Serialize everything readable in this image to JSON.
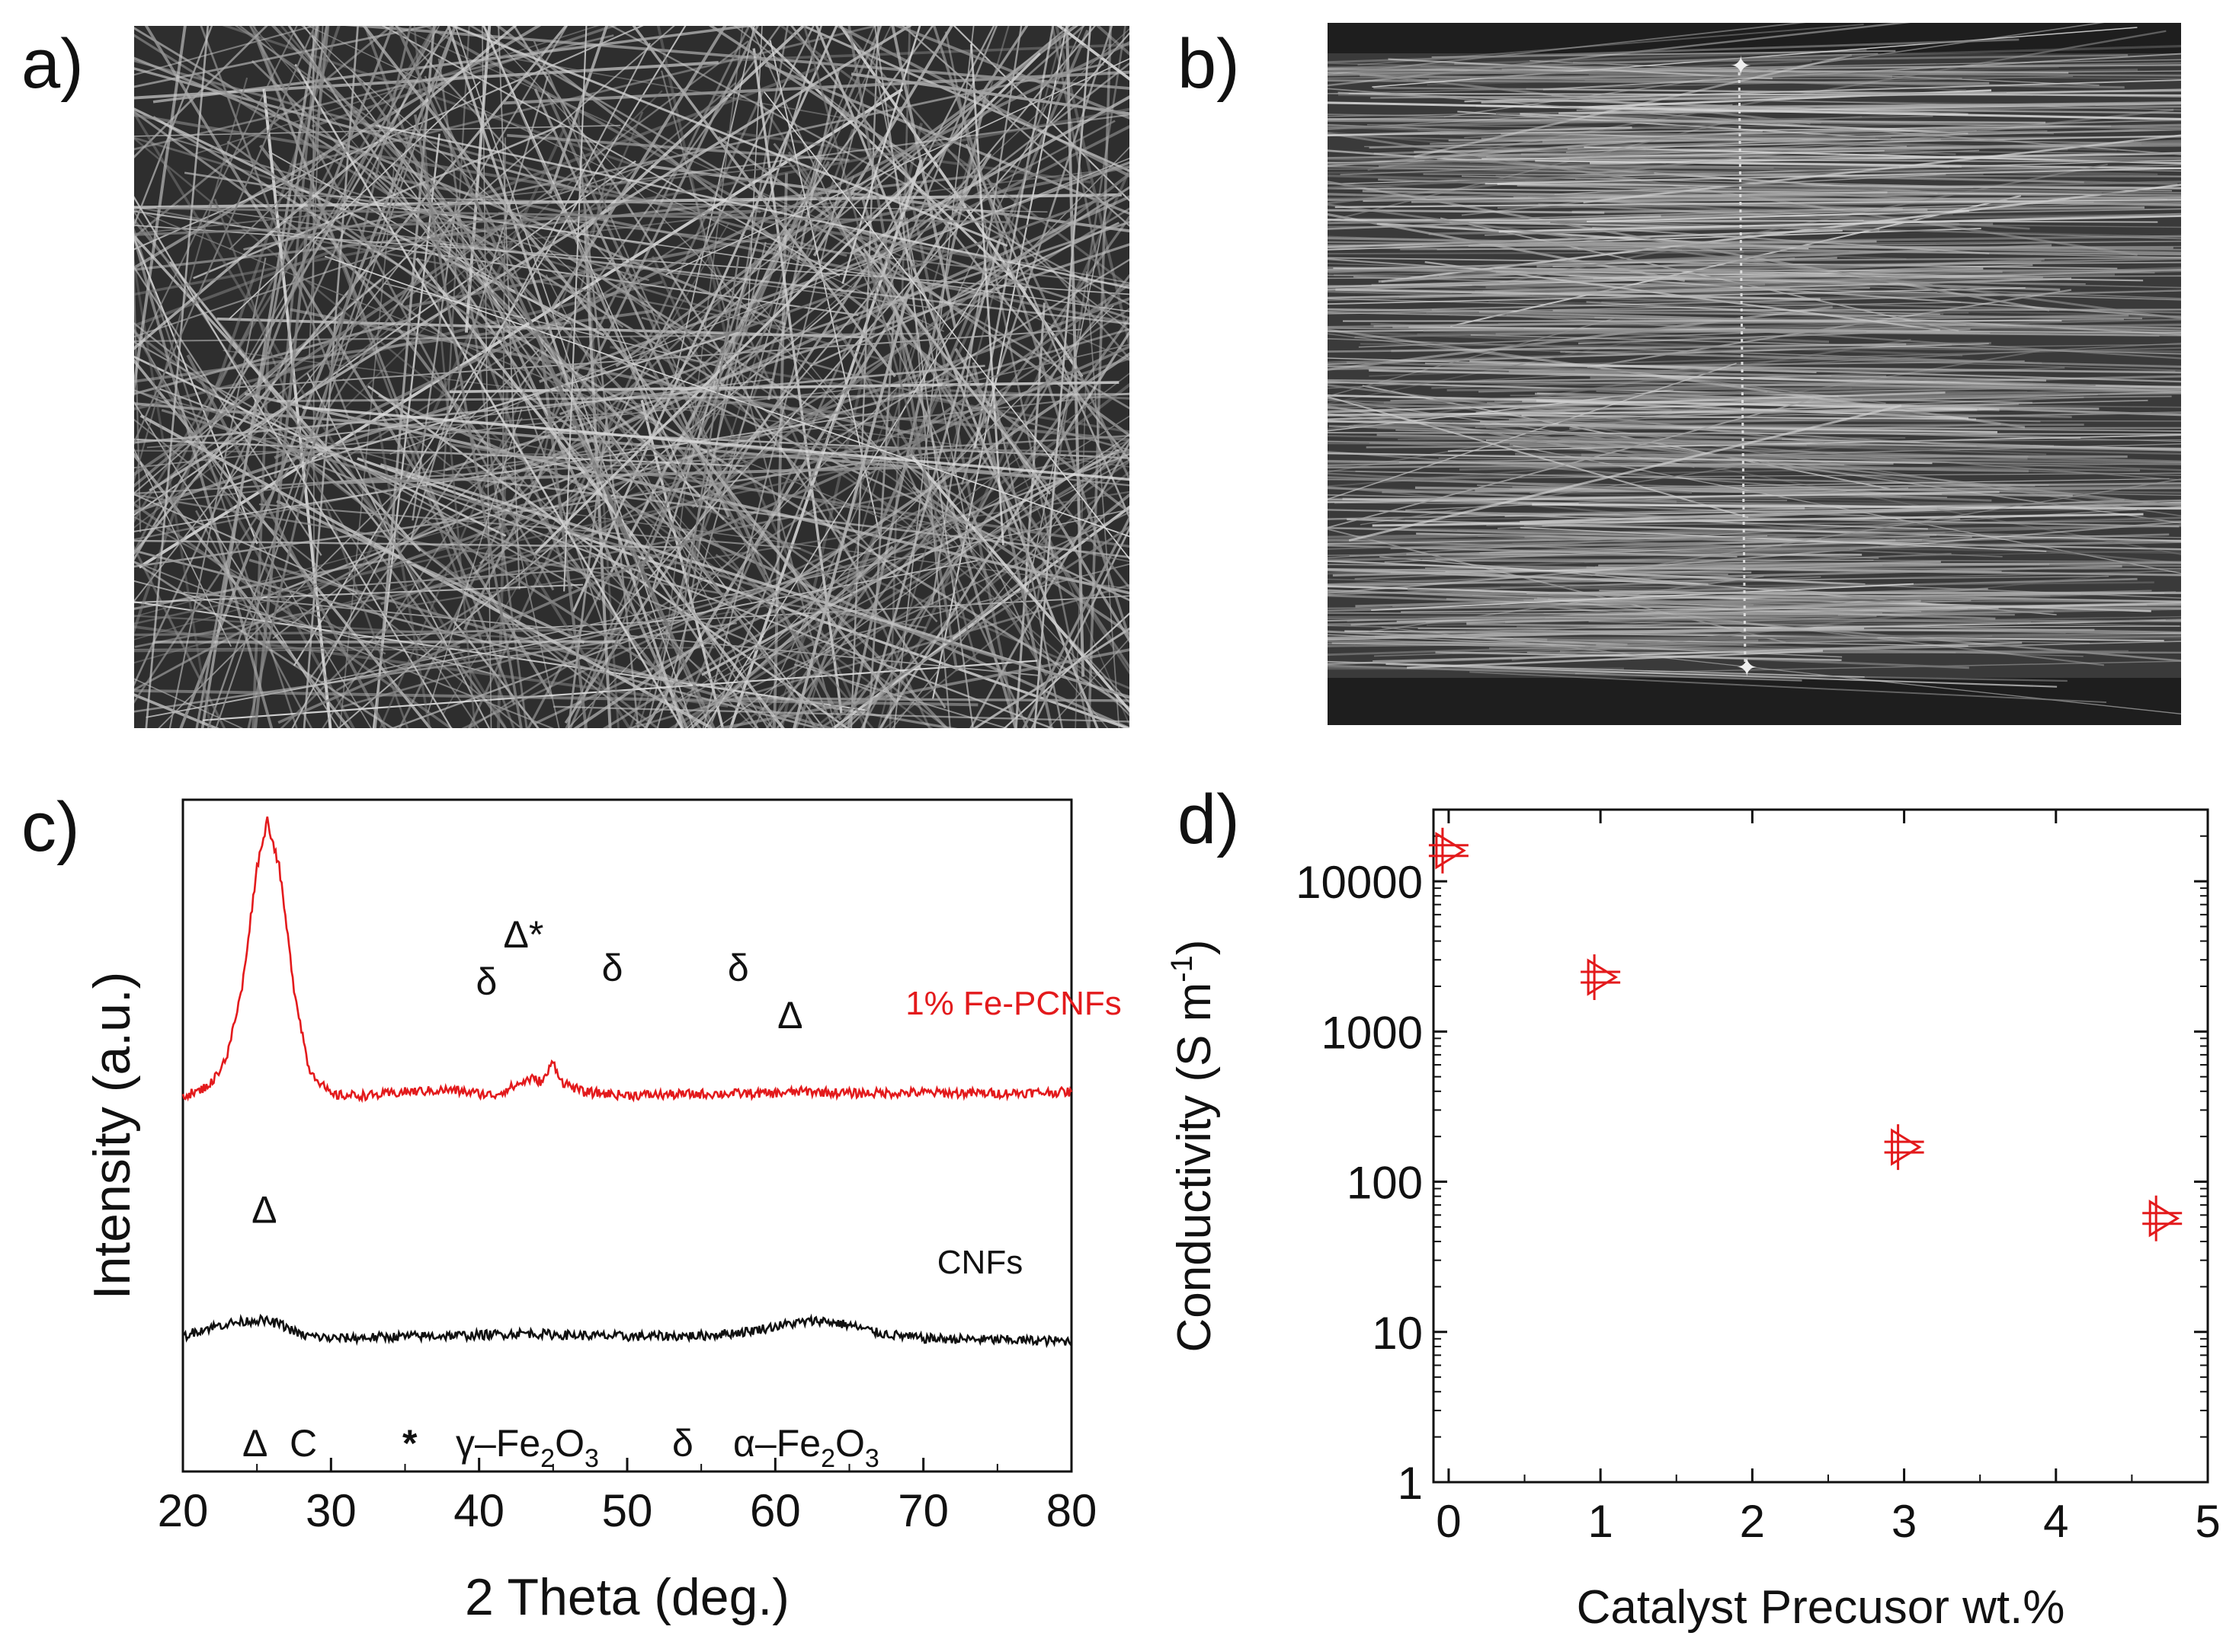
{
  "panels": {
    "a": {
      "label": "a)"
    },
    "b": {
      "label": "b)"
    },
    "c": {
      "label": "c)"
    },
    "d": {
      "label": "d)"
    }
  },
  "chart_data": [
    {
      "panel": "c",
      "type": "line",
      "title": "",
      "xlabel": "2 Theta (deg.)",
      "ylabel": "Intensity (a.u.)",
      "xlim": [
        20,
        80
      ],
      "xticks": [
        20,
        30,
        40,
        50,
        60,
        70,
        80
      ],
      "series": [
        {
          "name": "1% Fe-PCNFs",
          "color": "#e31a1c",
          "points": [
            [
              20,
              56
            ],
            [
              21,
              56.5
            ],
            [
              22,
              58
            ],
            [
              23,
              62
            ],
            [
              24,
              72
            ],
            [
              25,
              90
            ],
            [
              25.7,
              97
            ],
            [
              26.5,
              90
            ],
            [
              27.5,
              72
            ],
            [
              28.5,
              60
            ],
            [
              30,
              56
            ],
            [
              33,
              56
            ],
            [
              35,
              56.5
            ],
            [
              38,
              56.8
            ],
            [
              41,
              56
            ],
            [
              42.5,
              57.5
            ],
            [
              43.5,
              58.5
            ],
            [
              44.3,
              58
            ],
            [
              45,
              61
            ],
            [
              45.6,
              58
            ],
            [
              47,
              56.5
            ],
            [
              50,
              56
            ],
            [
              55,
              56.2
            ],
            [
              60,
              56.3
            ],
            [
              62,
              56.6
            ],
            [
              65,
              56.3
            ],
            [
              70,
              56.4
            ],
            [
              75,
              56.3
            ],
            [
              80,
              56.5
            ]
          ]
        },
        {
          "name": "CNFs",
          "color": "#111111",
          "points": [
            [
              20,
              20
            ],
            [
              21,
              21
            ],
            [
              23,
              22
            ],
            [
              25,
              22.6
            ],
            [
              26.5,
              22
            ],
            [
              28,
              20.3
            ],
            [
              30,
              19.8
            ],
            [
              35,
              20.1
            ],
            [
              40,
              20.3
            ],
            [
              43,
              20.6
            ],
            [
              46,
              20.3
            ],
            [
              50,
              20.1
            ],
            [
              55,
              20.2
            ],
            [
              58,
              20.8
            ],
            [
              61,
              22
            ],
            [
              63,
              22.5
            ],
            [
              65,
              21.8
            ],
            [
              67,
              20.6
            ],
            [
              70,
              19.8
            ],
            [
              75,
              19.6
            ],
            [
              80,
              19.4
            ]
          ]
        }
      ],
      "peak_markers": [
        {
          "symbol": "δ",
          "x": 40.5,
          "y": 71
        },
        {
          "symbol": "Δ*",
          "x": 43.0,
          "y": 78
        },
        {
          "symbol": "δ",
          "x": 49.0,
          "y": 73
        },
        {
          "symbol": "δ",
          "x": 57.5,
          "y": 73
        },
        {
          "symbol": "Δ",
          "x": 61.0,
          "y": 66
        },
        {
          "symbol": "Δ",
          "x": 25.5,
          "y": 37
        }
      ],
      "series_labels": [
        {
          "text": "1% Fe-PCNFs",
          "color": "#e31a1c"
        },
        {
          "text": "CNFs",
          "color": "#111111"
        }
      ],
      "legend": [
        {
          "symbol": "Δ",
          "label": "C"
        },
        {
          "symbol": "*",
          "label": "γ–Fe",
          "sub1": "2",
          "mid": "O",
          "sub2": "3"
        },
        {
          "symbol": "δ",
          "label": "α–Fe",
          "sub1": "2",
          "mid": "O",
          "sub2": "3"
        }
      ]
    },
    {
      "panel": "d",
      "type": "scatter",
      "title": "",
      "xlabel": "Catalyst Precusor wt.%",
      "ylabel": "Conductivity (S m",
      "ylabel_sup": "-1",
      "ylabel_end": ")",
      "xlim": [
        -0.1,
        5
      ],
      "ylim": [
        1,
        30000
      ],
      "yscale": "log",
      "xticks": [
        0,
        1,
        2,
        3,
        4,
        5
      ],
      "yticks": [
        1,
        10,
        100,
        1000,
        10000
      ],
      "ytick_labels": [
        "1",
        "10",
        "100",
        "1000",
        "10000"
      ],
      "marker_color": "#e31a1c",
      "x": [
        0.0,
        1.0,
        3.0,
        4.7
      ],
      "y": [
        16000,
        2300,
        170,
        57
      ]
    }
  ]
}
